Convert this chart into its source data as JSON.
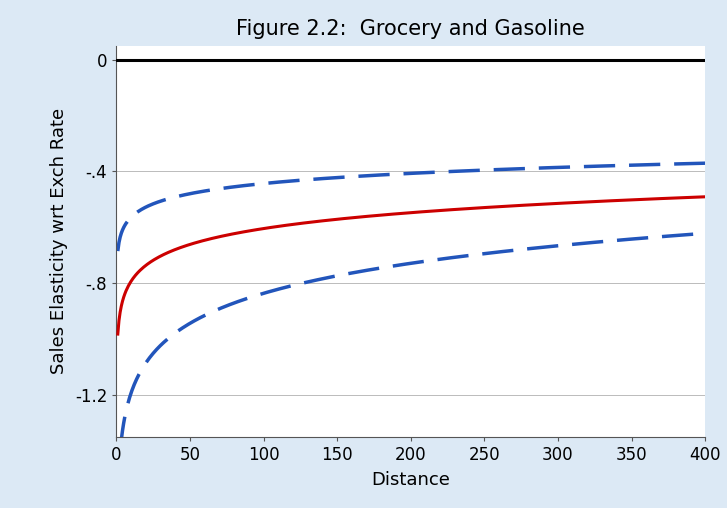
{
  "title": "Figure 2.2:  Grocery and Gasoline",
  "xlabel": "Distance",
  "ylabel": "Sales Elasticity wrt Exch Rate",
  "background_color": "#dce9f5",
  "plot_bg_color": "#ffffff",
  "xlim": [
    0,
    400
  ],
  "ylim": [
    -1.35,
    0.05
  ],
  "yticks": [
    0,
    -0.4,
    -0.8,
    -1.2
  ],
  "ytick_labels": [
    "0",
    "-.4",
    "-.8",
    "-1.2"
  ],
  "xticks": [
    0,
    50,
    100,
    150,
    200,
    250,
    300,
    350,
    400
  ],
  "xtick_labels": [
    "0",
    "50",
    "100",
    "150",
    "200",
    "250",
    "300",
    "350",
    "400"
  ],
  "hline_y": 0,
  "hline_color": "#000000",
  "hline_lw": 2.2,
  "red_line_color": "#cc0000",
  "blue_dashed_color": "#2255bb",
  "red_lw": 2.2,
  "blue_lw": 2.5,
  "dash_on": 9,
  "dash_off": 4,
  "title_fontsize": 15,
  "label_fontsize": 13,
  "tick_fontsize": 12,
  "x_start": 1,
  "x_end": 400,
  "n_points": 500,
  "a_red": -0.982,
  "b_red": 0.082,
  "a_upper": -0.685,
  "b_upper": 0.0525,
  "a_lower": -1.55,
  "b_lower": 0.155,
  "grid_color": "#bbbbbb",
  "grid_lw": 0.7
}
